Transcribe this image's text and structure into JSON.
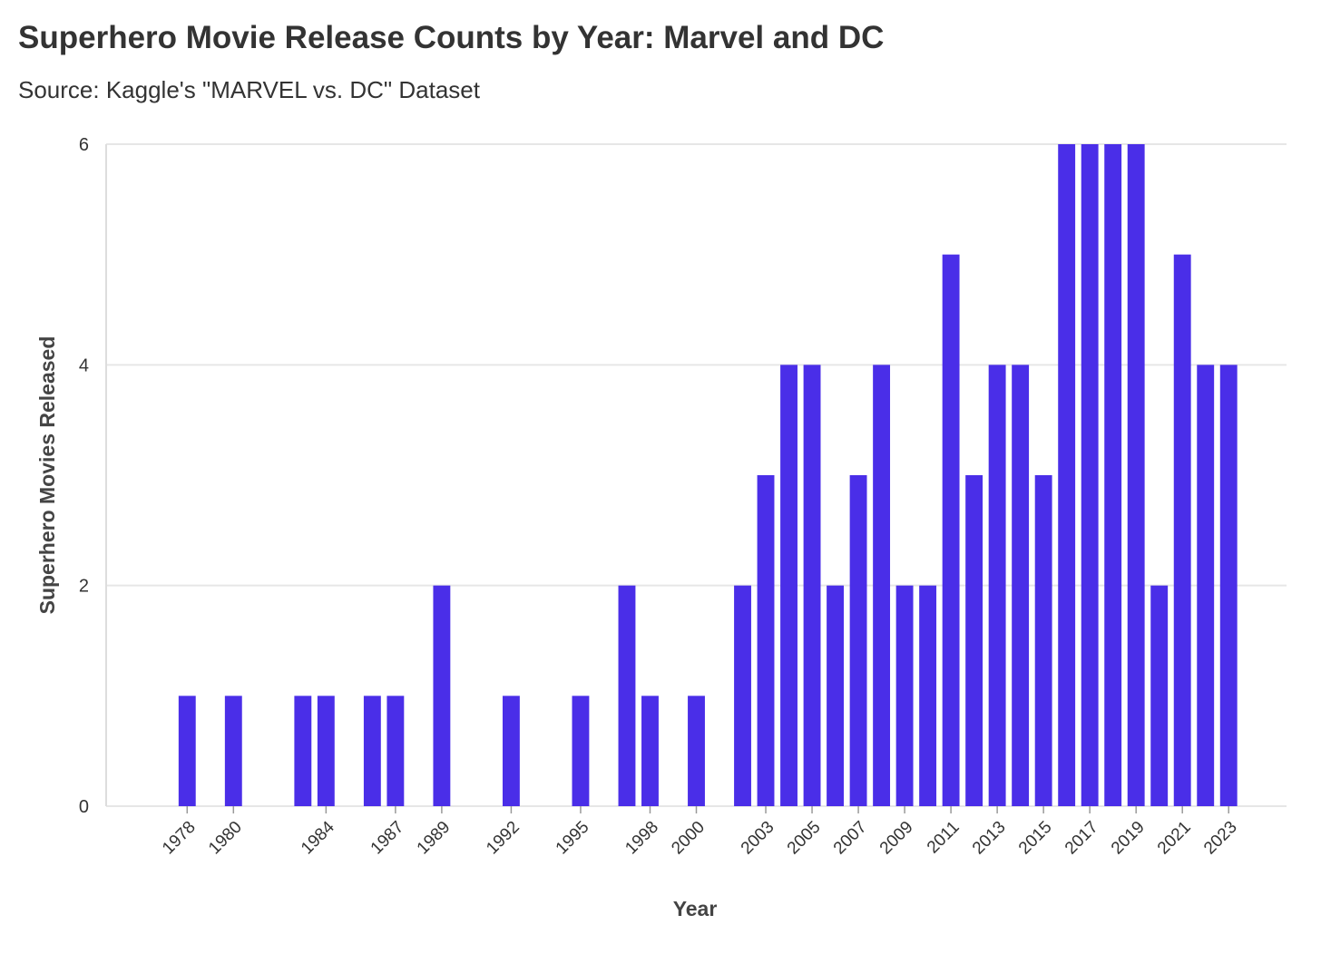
{
  "header": {
    "title": "Superhero Movie Release Counts by Year: Marvel and DC",
    "subtitle": "Source: Kaggle's \"MARVEL vs. DC\" Dataset"
  },
  "colors": {
    "bar": "#4a2ee8",
    "grid": "#e6e6e6",
    "axis": "#dddddd"
  },
  "chart_data": {
    "type": "bar",
    "title": "Superhero Movie Release Counts by Year: Marvel and DC",
    "subtitle": "Source: Kaggle's \"MARVEL vs. DC\" Dataset",
    "xlabel": "Year",
    "ylabel": "Superhero Movies Released",
    "xlim": [
      1974.5,
      2025.5
    ],
    "ylim": [
      0,
      6
    ],
    "yticks": [
      0,
      2,
      4,
      6
    ],
    "xtick_labels": [
      "1978",
      "1980",
      "1984",
      "1987",
      "1989",
      "1992",
      "1995",
      "1998",
      "2000",
      "2003",
      "2005",
      "2007",
      "2009",
      "2011",
      "2013",
      "2015",
      "2017",
      "2019",
      "2021",
      "2023"
    ],
    "grid": true,
    "legend": "none",
    "categories": [
      1978,
      1980,
      1983,
      1984,
      1986,
      1987,
      1989,
      1992,
      1995,
      1997,
      1998,
      2000,
      2002,
      2003,
      2004,
      2005,
      2006,
      2007,
      2008,
      2009,
      2010,
      2011,
      2012,
      2013,
      2014,
      2015,
      2016,
      2017,
      2018,
      2019,
      2020,
      2021,
      2022,
      2023
    ],
    "values": [
      1,
      1,
      1,
      1,
      1,
      1,
      2,
      1,
      1,
      2,
      1,
      1,
      2,
      3,
      4,
      4,
      2,
      3,
      4,
      2,
      2,
      5,
      3,
      4,
      4,
      3,
      6,
      6,
      6,
      6,
      2,
      5,
      4,
      4
    ]
  }
}
